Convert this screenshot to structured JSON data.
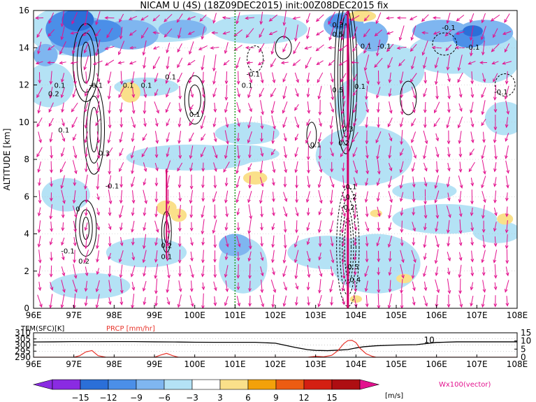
{
  "title": "NICAM U (4S) (18Z09DEC2015) init:00Z08DEC2015 fix",
  "colors": {
    "neg15": "#8a2be2",
    "neg12": "#2b6fd8",
    "neg9": "#4b8fe8",
    "neg6": "#7fb6f0",
    "neg3": "#b4e2f5",
    "white": "#ffffff",
    "pos3": "#fae08a",
    "pos6": "#f3a10a",
    "pos9": "#ec5c12",
    "pos12": "#d41f12",
    "pos15": "#ae0e12",
    "vector": "#e3118e",
    "marker": "#2a9d2a",
    "precip": "#e8332a"
  },
  "chart_data": [
    {
      "type": "heatmap",
      "title": "NICAM U (4S) (18Z09DEC2015) init:00Z08DEC2015 fix",
      "xlabel": "",
      "ylabel": "ALTITUDE [km]",
      "xlim": [
        96,
        108
      ],
      "ylim": [
        0,
        16
      ],
      "xticks": [
        "96E",
        "97E",
        "98E",
        "99E",
        "100E",
        "101E",
        "102E",
        "103E",
        "104E",
        "105E",
        "106E",
        "107E",
        "108E"
      ],
      "yticks": [
        "0",
        "2",
        "4",
        "6",
        "8",
        "10",
        "12",
        "14",
        "16"
      ],
      "marker_line_lon": 101.0,
      "core_line_lon": 103.8,
      "contour_labels": [
        {
          "text": "0.1",
          "x": 96.65,
          "y": 11.85
        },
        {
          "text": "0.2",
          "x": 96.5,
          "y": 11.4
        },
        {
          "text": "-0.1",
          "x": 97.55,
          "y": 11.85
        },
        {
          "text": "0.1",
          "x": 98.35,
          "y": 11.85
        },
        {
          "text": "0.1",
          "x": 98.8,
          "y": 11.85
        },
        {
          "text": "0.1",
          "x": 100.0,
          "y": 10.3
        },
        {
          "text": "0.1",
          "x": 96.75,
          "y": 9.45
        },
        {
          "text": "0.3",
          "x": 97.75,
          "y": 8.2
        },
        {
          "text": "-0.1",
          "x": 97.95,
          "y": 6.45
        },
        {
          "text": "0.1",
          "x": 99.4,
          "y": 12.3
        },
        {
          "text": "-0.1",
          "x": 101.45,
          "y": 12.45
        },
        {
          "text": "0.1",
          "x": 101.3,
          "y": 11.85
        },
        {
          "text": "0.1",
          "x": 103.0,
          "y": 8.65
        },
        {
          "text": "0.3",
          "x": 103.55,
          "y": 15.1
        },
        {
          "text": "0.5",
          "x": 103.55,
          "y": 14.6
        },
        {
          "text": "0.1",
          "x": 104.25,
          "y": 13.95
        },
        {
          "text": "-0.1",
          "x": 104.7,
          "y": 13.95
        },
        {
          "text": "0.5",
          "x": 103.55,
          "y": 11.6
        },
        {
          "text": "0.1",
          "x": 104.1,
          "y": 11.8
        },
        {
          "text": "0.3",
          "x": 103.8,
          "y": 9.5
        },
        {
          "text": "0.2",
          "x": 103.7,
          "y": 8.75
        },
        {
          "text": "-0.1",
          "x": 106.3,
          "y": 14.95
        },
        {
          "text": "-0.1",
          "x": 106.9,
          "y": 13.9
        },
        {
          "text": "-0.1",
          "x": 107.6,
          "y": 11.5
        },
        {
          "text": "0.2",
          "x": 99.3,
          "y": 3.25
        },
        {
          "text": "0.1",
          "x": 99.3,
          "y": 2.65
        },
        {
          "text": "-0.1",
          "x": 96.85,
          "y": 2.95
        },
        {
          "text": "0.2",
          "x": 97.25,
          "y": 2.4
        },
        {
          "text": "0",
          "x": 97.1,
          "y": 5.2
        },
        {
          "text": "-0.1",
          "x": 103.85,
          "y": 6.4
        },
        {
          "text": "-0.2",
          "x": 103.85,
          "y": 5.85
        },
        {
          "text": "-0.2",
          "x": 103.8,
          "y": 5.3
        },
        {
          "text": "-0.5",
          "x": 103.9,
          "y": 2.1
        },
        {
          "text": "-0.4",
          "x": 103.95,
          "y": 1.4
        }
      ]
    },
    {
      "type": "line",
      "xlim": [
        96,
        108
      ],
      "xticks": [
        "96E",
        "97E",
        "98E",
        "99E",
        "100E",
        "101E",
        "102E",
        "103E",
        "104E",
        "105E",
        "106E",
        "107E",
        "108E"
      ],
      "left_axis_label": "TEM(SFC)[K]",
      "right_axis_label": "PRCP [mm/hr]",
      "left_yticks": [
        "290",
        "295",
        "300",
        "305",
        "310"
      ],
      "right_yticks": [
        "0",
        "5",
        "10",
        "15"
      ],
      "left_ylim": [
        290,
        310
      ],
      "right_ylim": [
        0,
        15
      ],
      "series": [
        {
          "name": "TEM(SFC)[K]",
          "axis": "left",
          "x": [
            96.0,
            96.5,
            97.0,
            97.5,
            98.0,
            98.5,
            99.0,
            99.5,
            100.0,
            100.5,
            101.0,
            101.5,
            102.0,
            102.5,
            102.8,
            103.0,
            103.3,
            103.6,
            103.8,
            104.0,
            104.2,
            104.5,
            105.0,
            105.5,
            106.0,
            106.5,
            107.0,
            107.5,
            108.0
          ],
          "values": [
            302.5,
            302.6,
            302.8,
            302.7,
            302.8,
            302.8,
            302.6,
            302.5,
            302.3,
            302.2,
            302.2,
            302.2,
            301.5,
            298.0,
            296.2,
            295.6,
            295.4,
            295.9,
            296.3,
            297.6,
            298.6,
            299.4,
            300.0,
            300.3,
            302.1,
            302.6,
            302.6,
            302.6,
            302.6
          ]
        },
        {
          "name": "PRCP [mm/hr]",
          "axis": "right",
          "x": [
            96.0,
            97.0,
            97.15,
            97.3,
            97.45,
            97.6,
            97.8,
            99.0,
            99.15,
            99.3,
            99.45,
            99.6,
            102.8,
            103.0,
            103.2,
            103.4,
            103.55,
            103.7,
            103.8,
            103.9,
            104.0,
            104.1,
            104.25,
            104.4,
            104.5,
            108.0
          ],
          "values": [
            0,
            0,
            1.0,
            3.3,
            4.1,
            1.0,
            0,
            0,
            1.3,
            2.4,
            1.0,
            0,
            0,
            0.6,
            0.3,
            1.2,
            4.0,
            8.4,
            10.2,
            10.4,
            9.0,
            5.5,
            2.2,
            0.6,
            0,
            0
          ]
        }
      ],
      "annotation": "10"
    }
  ],
  "colorbar": {
    "ticks": [
      "−15",
      "−12",
      "−9",
      "−6",
      "−3",
      "3",
      "6",
      "9",
      "12",
      "15"
    ],
    "unit": "[m/s]"
  },
  "vector_label": "Wx100(vector)"
}
